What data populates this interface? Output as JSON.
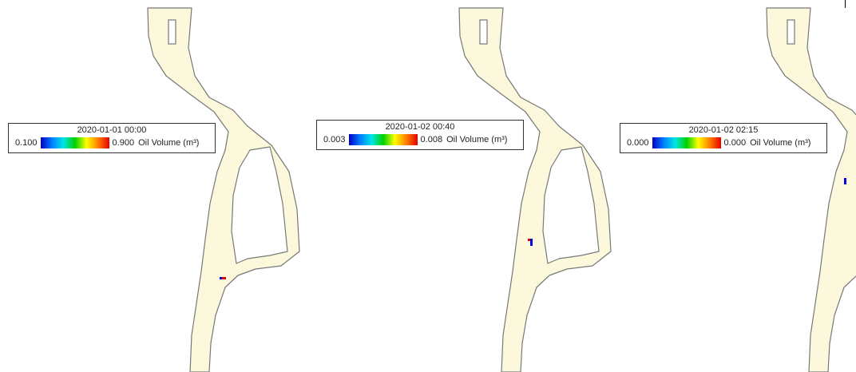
{
  "colors": {
    "river": "#fbf8dc",
    "outline": "#787878",
    "spill_red": "#e00000",
    "spill_blue": "#0000e0"
  },
  "colorbar": [
    "#0000c8",
    "#0080ff",
    "#00e6e6",
    "#00d000",
    "#ffff00",
    "#ff8000",
    "#e80000"
  ],
  "panels": [
    {
      "id": "panel-1",
      "timestamp": "2020-01-01 00:00",
      "min_label": "0.100",
      "max_label": "0.900",
      "unit_label": "Oil Volume (m³)"
    },
    {
      "id": "panel-2",
      "timestamp": "2020-01-02 00:40",
      "min_label": "0.003",
      "max_label": "0.008",
      "unit_label": "Oil Volume (m³)"
    },
    {
      "id": "panel-3",
      "timestamp": "2020-01-02 02:15",
      "min_label": "0.000",
      "max_label": "0.000",
      "unit_label": "Oil Volume (m³)"
    }
  ]
}
